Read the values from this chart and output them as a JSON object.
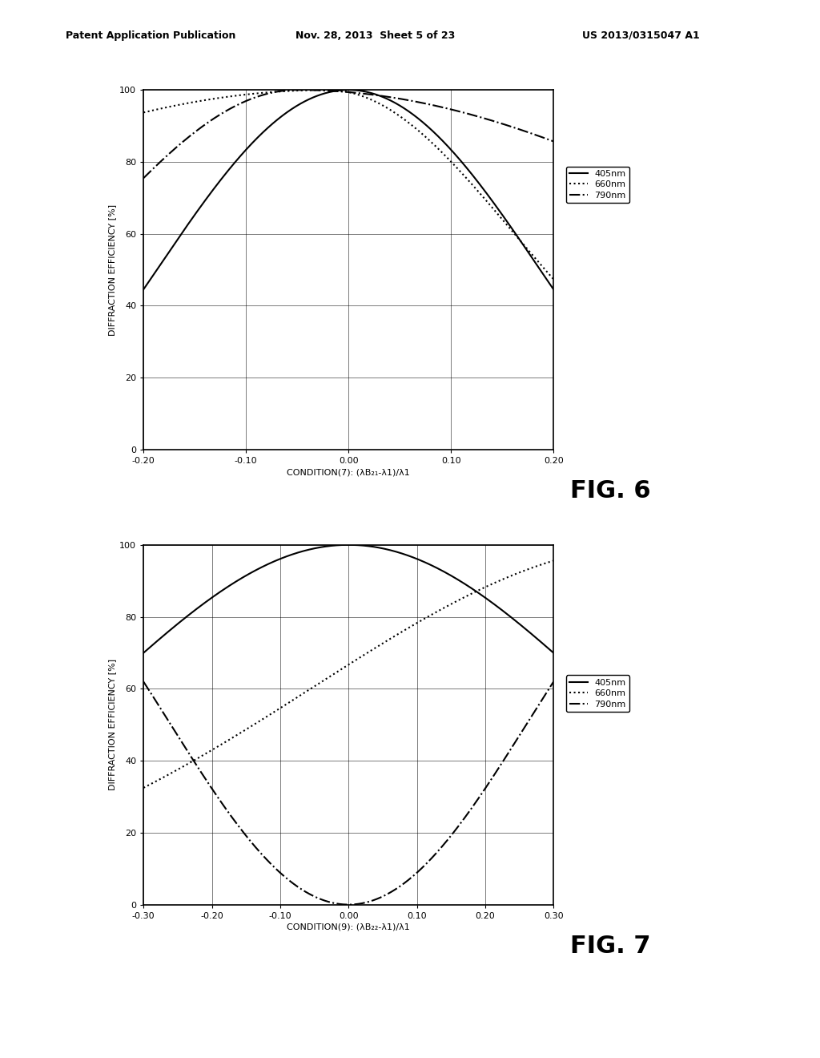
{
  "fig6": {
    "xlabel": "CONDITION(7): (λB₂₁-λ1)/λ1",
    "ylabel": "DIFFRACTION EFFICIENCY [%]",
    "xlim": [
      -0.2,
      0.2
    ],
    "ylim": [
      0,
      100
    ],
    "xticks": [
      -0.2,
      -0.1,
      0.0,
      0.1,
      0.2
    ],
    "xticklabels": [
      "-0.20",
      "-0.10",
      "0.00",
      "0.10",
      "0.20"
    ],
    "yticks": [
      0,
      20,
      40,
      60,
      80,
      100
    ],
    "yticklabels": [
      "0",
      "20",
      "40",
      "60",
      "80",
      "100"
    ],
    "legend": [
      "405nm",
      "660nm",
      "790nm"
    ]
  },
  "fig7": {
    "xlabel": "CONDITION(9): (λB₂₂-λ1)/λ1",
    "ylabel": "DIFFRACTION EFFICIENCY [%]",
    "xlim": [
      -0.3,
      0.3
    ],
    "ylim": [
      0,
      100
    ],
    "xticks": [
      -0.3,
      -0.2,
      -0.1,
      0.0,
      0.1,
      0.2,
      0.3
    ],
    "xticklabels": [
      "-0.30",
      "-0.20",
      "-0.10",
      "0.00",
      "0.10",
      "0.20",
      "0.30"
    ],
    "yticks": [
      0,
      20,
      40,
      60,
      80,
      100
    ],
    "yticklabels": [
      "0",
      "20",
      "40",
      "60",
      "80",
      "100"
    ],
    "legend": [
      "405nm",
      "660nm",
      "790nm"
    ]
  },
  "header_left": "Patent Application Publication",
  "header_mid": "Nov. 28, 2013  Sheet 5 of 23",
  "header_right": "US 2013/0315047 A1",
  "fig6_label": "FIG. 6",
  "fig7_label": "FIG. 7",
  "background_color": "#ffffff",
  "font_size_axis_label": 8,
  "font_size_tick": 8,
  "font_size_legend": 8,
  "font_size_fig_label": 22,
  "font_size_header": 9
}
